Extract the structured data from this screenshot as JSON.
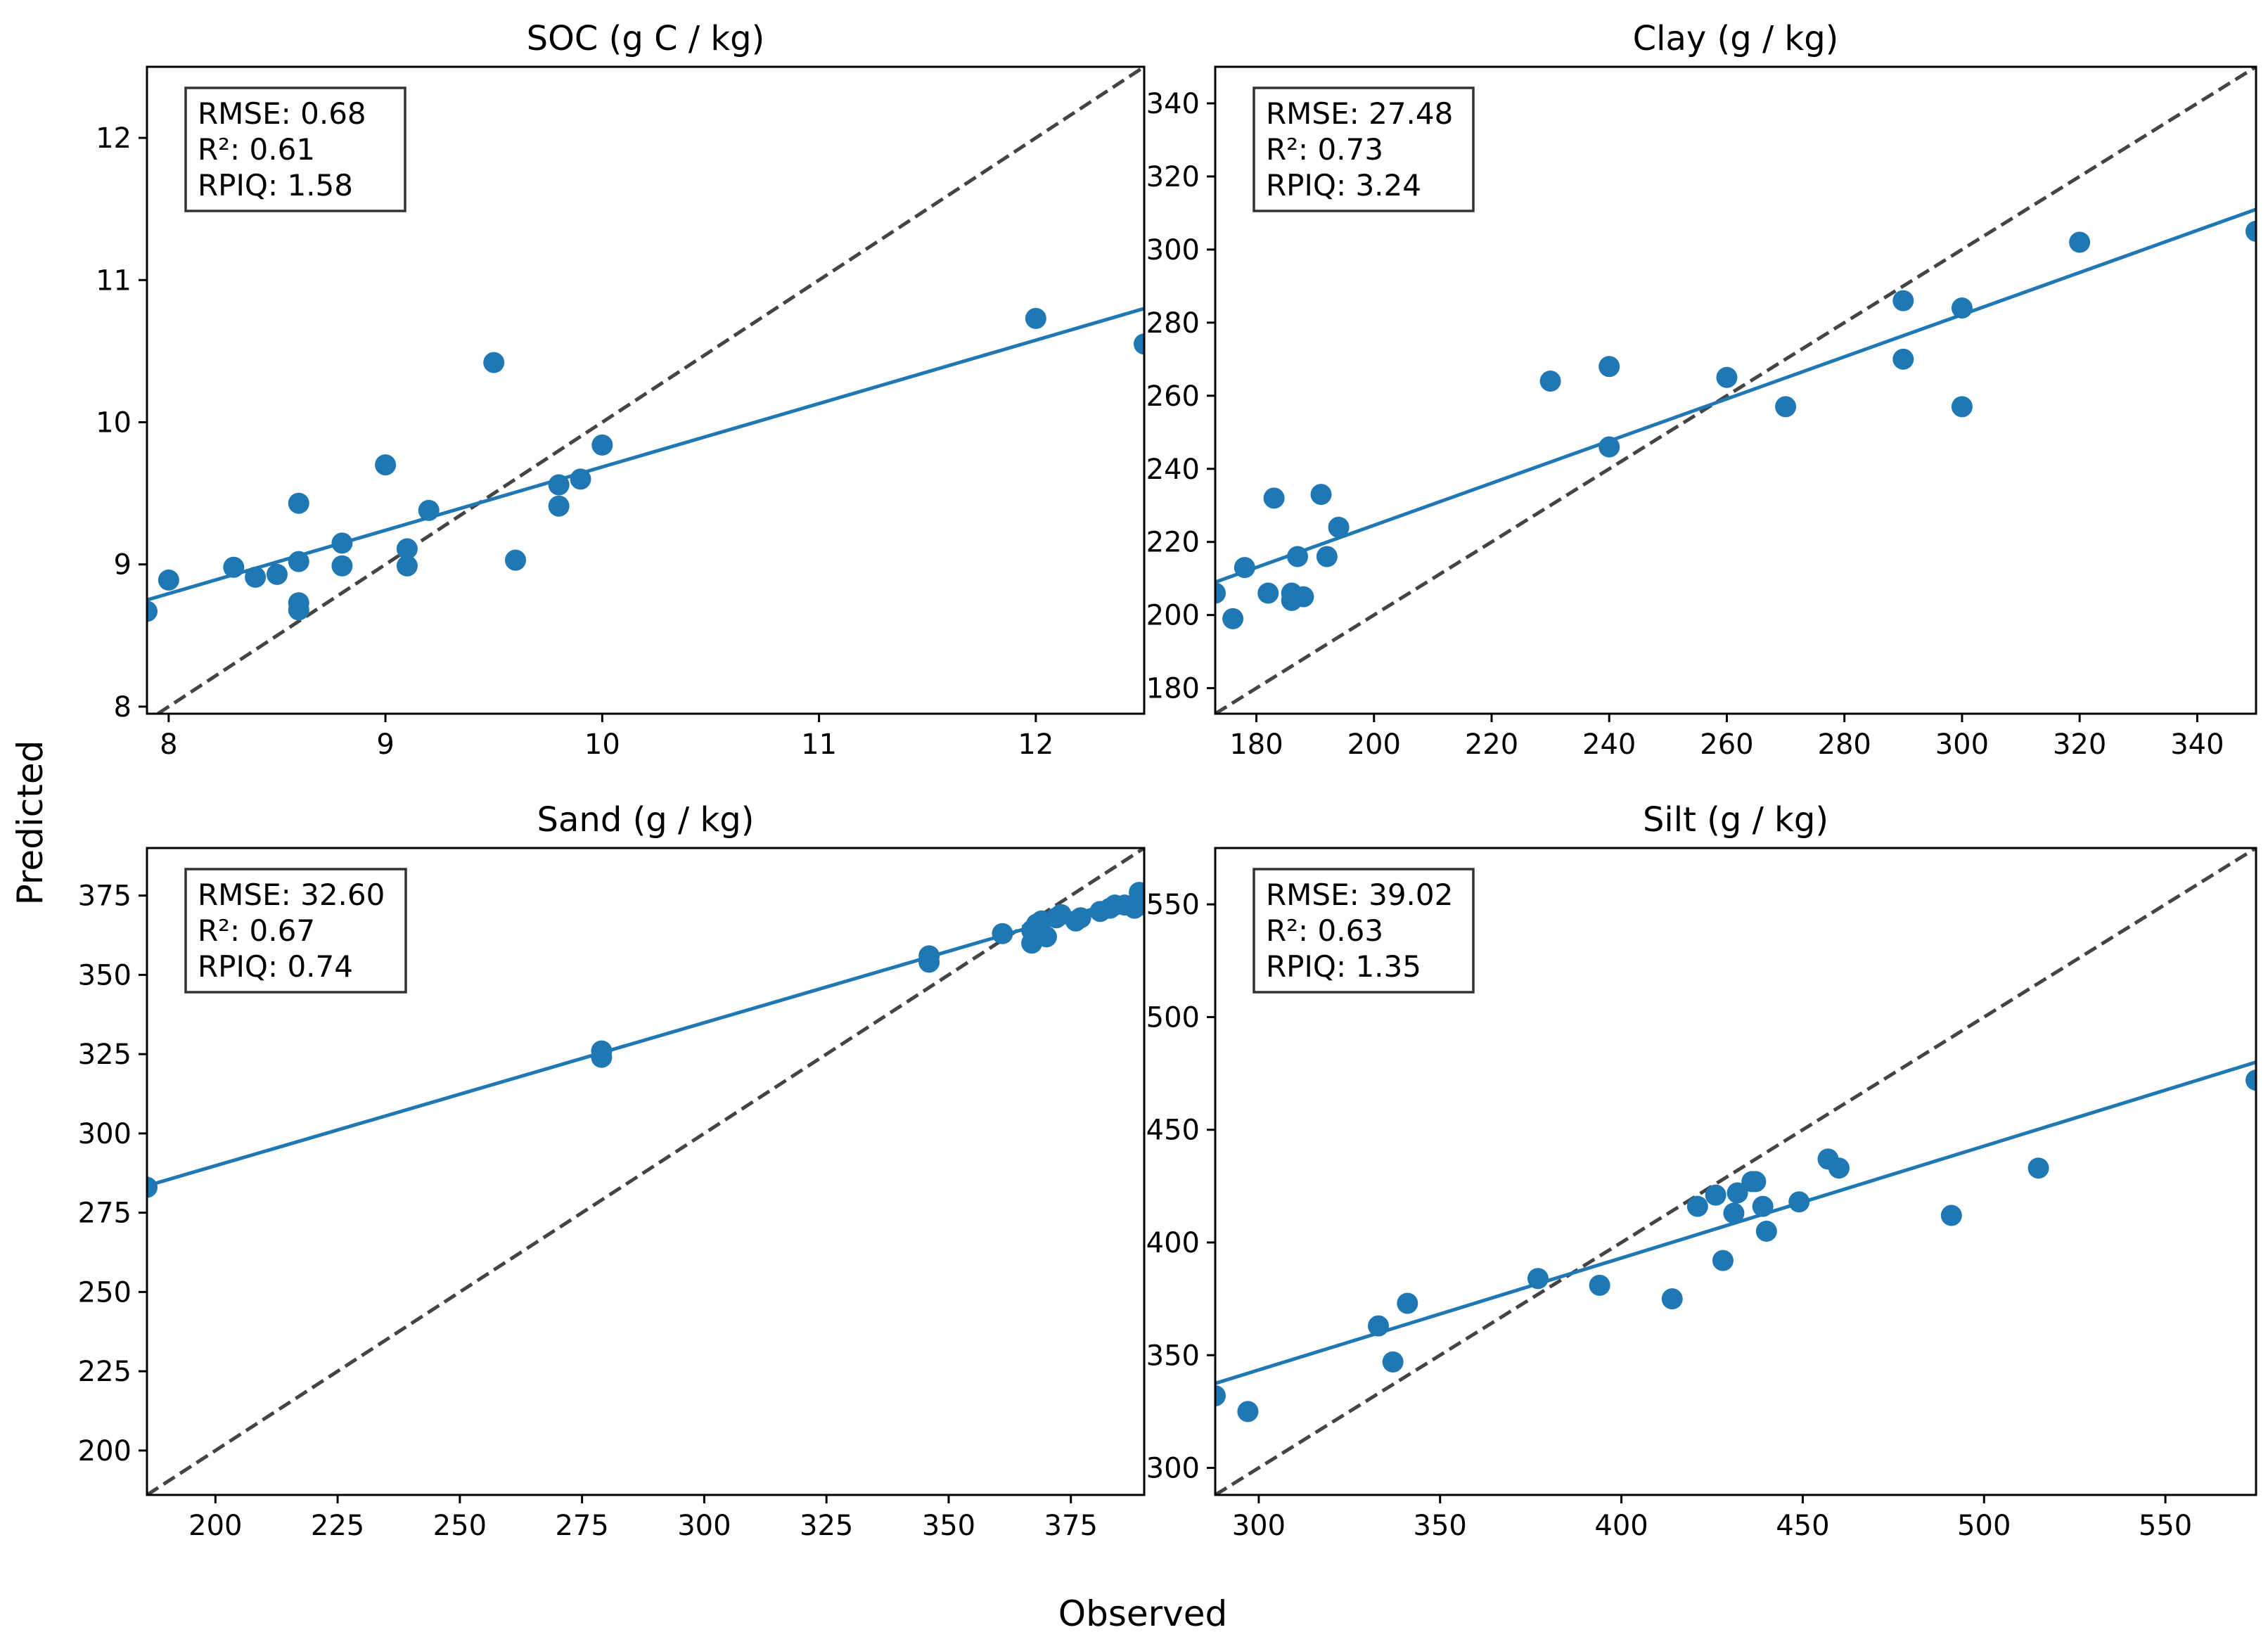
{
  "figure": {
    "xlabel": "Observed",
    "ylabel": "Predicted"
  },
  "colors": {
    "points": "#1f77b4",
    "fit_line": "#1f77b4",
    "identity_line": "#444444"
  },
  "chart_data": [
    {
      "type": "scatter",
      "title": "SOC (g C / kg)",
      "xlim": [
        7.9,
        12.5
      ],
      "ylim": [
        7.95,
        12.5
      ],
      "xticks": [
        8,
        9,
        10,
        11,
        12
      ],
      "yticks": [
        8,
        9,
        10,
        11,
        12
      ],
      "stats": {
        "rmse": "RMSE: 0.68",
        "r2": "R²: 0.61",
        "rpiq": "RPIQ: 1.58"
      },
      "fit": {
        "x": [
          7.9,
          12.5
        ],
        "y": [
          8.75,
          10.8
        ]
      },
      "identity": true,
      "points": {
        "x": [
          7.9,
          8.0,
          8.3,
          8.4,
          8.5,
          8.6,
          8.6,
          8.6,
          8.6,
          8.8,
          8.8,
          9.0,
          9.1,
          9.1,
          9.2,
          9.5,
          9.6,
          9.8,
          9.8,
          9.9,
          10.0,
          12.0,
          12.5
        ],
        "y": [
          8.67,
          8.89,
          8.98,
          8.91,
          8.93,
          9.43,
          9.02,
          8.73,
          8.68,
          9.15,
          8.99,
          9.7,
          9.11,
          8.99,
          9.38,
          10.42,
          9.03,
          9.41,
          9.56,
          9.6,
          9.84,
          10.73,
          10.55
        ]
      }
    },
    {
      "type": "scatter",
      "title": "Clay (g / kg)",
      "xlim": [
        173,
        350
      ],
      "ylim": [
        173,
        350
      ],
      "xticks": [
        180,
        200,
        220,
        240,
        260,
        280,
        300,
        320,
        340
      ],
      "yticks": [
        180,
        200,
        220,
        240,
        260,
        280,
        300,
        320,
        340
      ],
      "stats": {
        "rmse": "RMSE: 27.48",
        "r2": "R²: 0.73",
        "rpiq": "RPIQ: 3.24"
      },
      "fit": {
        "x": [
          173,
          350
        ],
        "y": [
          209,
          311
        ]
      },
      "identity": true,
      "points": {
        "x": [
          173,
          176,
          178,
          182,
          183,
          186,
          186,
          187,
          188,
          191,
          192,
          194,
          230,
          240,
          240,
          260,
          270,
          290,
          290,
          300,
          300,
          320,
          350
        ],
        "y": [
          206,
          199,
          213,
          206,
          232,
          206,
          204,
          216,
          205,
          233,
          216,
          224,
          264,
          268,
          246,
          265,
          257,
          286,
          270,
          284,
          257,
          302,
          305
        ]
      }
    },
    {
      "type": "scatter",
      "title": "Sand (g / kg)",
      "xlim": [
        186,
        390
      ],
      "ylim": [
        186,
        390
      ],
      "xticks": [
        200,
        225,
        250,
        275,
        300,
        325,
        350,
        375
      ],
      "yticks": [
        200,
        225,
        250,
        275,
        300,
        325,
        350,
        375
      ],
      "stats": {
        "rmse": "RMSE: 32.60",
        "r2": "R²: 0.67",
        "rpiq": "RPIQ: 0.74"
      },
      "fit": {
        "x": [
          186,
          390
        ],
        "y": [
          283.5,
          375.5
        ]
      },
      "identity": true,
      "points": {
        "x": [
          186,
          279,
          279,
          346,
          346,
          361,
          367,
          367,
          368,
          369,
          370,
          372,
          373,
          376,
          377,
          381,
          383,
          384,
          386,
          388,
          389,
          390
        ],
        "y": [
          283,
          326,
          324,
          356,
          354,
          363,
          364,
          360,
          366,
          367,
          362,
          368,
          369,
          367,
          368,
          370,
          371,
          372,
          372,
          371,
          376,
          372
        ]
      }
    },
    {
      "type": "scatter",
      "title": "Silt (g / kg)",
      "xlim": [
        288,
        575
      ],
      "ylim": [
        288,
        575
      ],
      "xticks": [
        300,
        350,
        400,
        450,
        500,
        550
      ],
      "yticks": [
        300,
        350,
        400,
        450,
        500,
        550
      ],
      "stats": {
        "rmse": "RMSE: 39.02",
        "r2": "R²: 0.63",
        "rpiq": "RPIQ: 1.35"
      },
      "fit": {
        "x": [
          288,
          575
        ],
        "y": [
          337.5,
          480
        ]
      },
      "identity": true,
      "points": {
        "x": [
          288,
          297,
          333,
          337,
          341,
          377,
          394,
          414,
          421,
          426,
          428,
          431,
          432,
          436,
          437,
          439,
          440,
          449,
          457,
          460,
          491,
          515,
          575
        ],
        "y": [
          332,
          325,
          363,
          347,
          373,
          384,
          381,
          375,
          416,
          421,
          392,
          413,
          422,
          427,
          427,
          416,
          405,
          418,
          437,
          433,
          412,
          433,
          472
        ]
      }
    }
  ]
}
